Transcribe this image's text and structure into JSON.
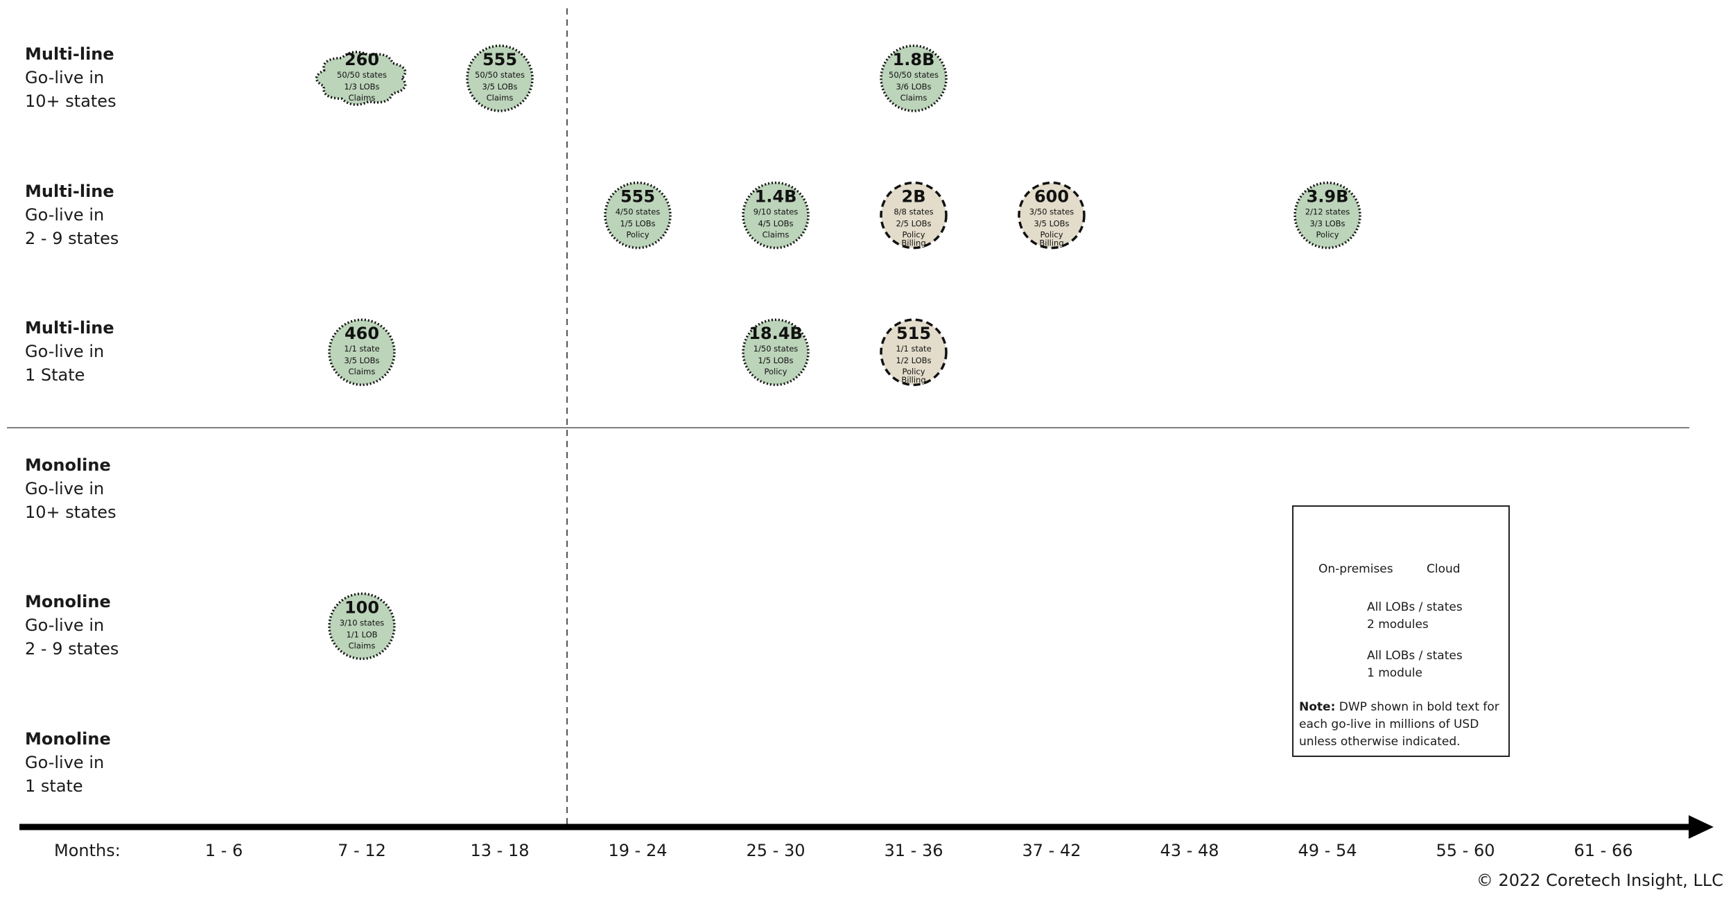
{
  "chart_data": {
    "type": "bubble-timeline",
    "title": "",
    "x_axis": {
      "title": "Months:",
      "categories": [
        "1 - 6",
        "7 - 12",
        "13 - 18",
        "19 - 24",
        "25 - 30",
        "31 - 36",
        "37 - 42",
        "43 - 48",
        "49 - 54",
        "55 - 60",
        "61 - 66"
      ]
    },
    "rows": [
      {
        "bold": "Multi-line",
        "line2": "Go-live in",
        "line3": "10+ states"
      },
      {
        "bold": "Multi-line",
        "line2": "Go-live in",
        "line3": "2 - 9 states"
      },
      {
        "bold": "Multi-line",
        "line2": "Go-live in",
        "line3": "1 State"
      },
      {
        "bold": "Monoline",
        "line2": "Go-live in",
        "line3": "10+ states"
      },
      {
        "bold": "Monoline",
        "line2": "Go-live in",
        "line3": "2 - 9 states"
      },
      {
        "bold": "Monoline",
        "line2": "Go-live in",
        "line3": "1 state"
      }
    ],
    "bubbles": [
      {
        "row": 0,
        "col": 1,
        "value": "260",
        "states": "50/50 states",
        "lobs": "1/3 LOBs",
        "modules": [
          "Claims"
        ],
        "deployment": "Cloud",
        "scope": "1 module"
      },
      {
        "row": 0,
        "col": 2,
        "value": "555",
        "states": "50/50 states",
        "lobs": "3/5 LOBs",
        "modules": [
          "Claims"
        ],
        "deployment": "On-premises",
        "scope": "1 module"
      },
      {
        "row": 0,
        "col": 5,
        "value": "1.8B",
        "states": "50/50 states",
        "lobs": "3/6 LOBs",
        "modules": [
          "Claims"
        ],
        "deployment": "On-premises",
        "scope": "1 module"
      },
      {
        "row": 1,
        "col": 3,
        "value": "555",
        "states": "4/50 states",
        "lobs": "1/5 LOBs",
        "modules": [
          "Policy"
        ],
        "deployment": "On-premises",
        "scope": "1 module"
      },
      {
        "row": 1,
        "col": 4,
        "value": "1.4B",
        "states": "9/10 states",
        "lobs": "4/5 LOBs",
        "modules": [
          "Claims"
        ],
        "deployment": "On-premises",
        "scope": "1 module"
      },
      {
        "row": 1,
        "col": 5,
        "value": "2B",
        "states": "8/8 states",
        "lobs": "2/5 LOBs",
        "modules": [
          "Policy",
          "Billing"
        ],
        "deployment": "On-premises",
        "scope": "2 modules"
      },
      {
        "row": 1,
        "col": 6,
        "value": "600",
        "states": "3/50 states",
        "lobs": "3/5 LOBs",
        "modules": [
          "Policy",
          "Billing"
        ],
        "deployment": "On-premises",
        "scope": "2 modules"
      },
      {
        "row": 1,
        "col": 8,
        "value": "3.9B",
        "states": "2/12 states",
        "lobs": "3/3 LOBs",
        "modules": [
          "Policy"
        ],
        "deployment": "On-premises",
        "scope": "1 module"
      },
      {
        "row": 2,
        "col": 1,
        "value": "460",
        "states": "1/1 state",
        "lobs": "3/5 LOBs",
        "modules": [
          "Claims"
        ],
        "deployment": "On-premises",
        "scope": "1 module"
      },
      {
        "row": 2,
        "col": 4,
        "value": "18.4B",
        "states": "1/50 states",
        "lobs": "1/5 LOBs",
        "modules": [
          "Policy"
        ],
        "deployment": "On-premises",
        "scope": "1 module"
      },
      {
        "row": 2,
        "col": 5,
        "value": "515",
        "states": "1/1 state",
        "lobs": "1/2 LOBs",
        "modules": [
          "Policy",
          "Billing"
        ],
        "deployment": "On-premises",
        "scope": "2 modules"
      },
      {
        "row": 4,
        "col": 1,
        "value": "100",
        "states": "3/10 states",
        "lobs": "1/1 LOB",
        "modules": [
          "Claims"
        ],
        "deployment": "On-premises",
        "scope": "1 module"
      }
    ],
    "legend": {
      "on_premises": "On-premises",
      "cloud": "Cloud",
      "two_modules_line1": "All LOBs / states",
      "two_modules_line2": "2 modules",
      "one_module_line1": "All LOBs / states",
      "one_module_line2": "1 module",
      "note_label": "Note:",
      "note_text": " DWP shown in bold text for each go-live in millions of USD unless otherwise indicated."
    },
    "colors": {
      "one_module_fill": "#bcd4ba",
      "two_modules_fill": "#e3dccb",
      "axis": "#000000",
      "divider": "#555555"
    }
  },
  "copyright": "© 2022 Coretech Insight, LLC"
}
